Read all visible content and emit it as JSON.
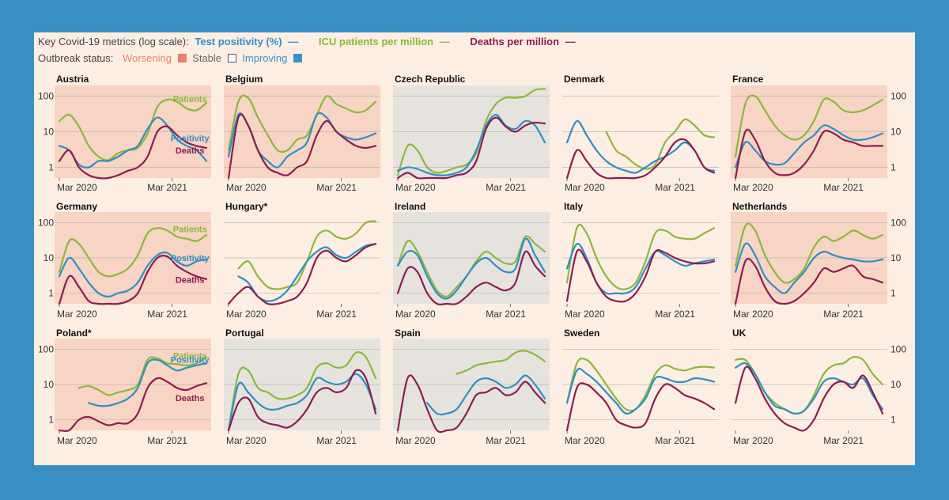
{
  "legend": {
    "metrics_prefix": "Key Covid-19 metrics (log scale):",
    "status_prefix": "Outbreak status:"
  },
  "colors": {
    "page_background": "#3a8fc2",
    "card_background": "#fdeee4",
    "positivity": "#2f8fc4",
    "patients": "#8cb83a",
    "deaths": "#8b1e50",
    "worsening_bg": "#f7d4c3",
    "stable_bg": "#e6e3df",
    "worsening_swatch": "#e9826a",
    "improving_swatch": "#3a93c8"
  },
  "chart_data": {
    "type": "line",
    "scale": "log",
    "y_ticks": [
      1,
      10,
      100
    ],
    "x_ticks": [
      "Mar 2020",
      "Mar 2021"
    ],
    "x_range": [
      "2020-03",
      "2021-04"
    ],
    "series": [
      {
        "key": "positivity",
        "name": "Test positivity (%)",
        "symbol": "—"
      },
      {
        "key": "patients",
        "name": "ICU patients per million",
        "symbol": "—"
      },
      {
        "key": "deaths",
        "name": "Deaths per million",
        "symbol": "—"
      }
    ],
    "statuses": [
      {
        "key": "worsening",
        "label": "Worsening"
      },
      {
        "key": "stable",
        "label": "Stable"
      },
      {
        "key": "improving",
        "label": "Improving"
      }
    ],
    "countries": [
      {
        "name": "Austria",
        "status": "worsening",
        "patients": [
          20,
          30,
          14,
          4,
          2,
          1.6,
          2.5,
          3,
          3.5,
          9,
          50,
          80,
          70,
          45,
          40,
          65
        ],
        "positivity": [
          4,
          3,
          1.2,
          1,
          1.5,
          1.5,
          2,
          3,
          4,
          12,
          25,
          15,
          6,
          4,
          3,
          1.5
        ],
        "deaths": [
          1.5,
          3,
          1,
          0.6,
          0.5,
          0.5,
          0.6,
          0.8,
          1,
          2,
          10,
          14,
          8,
          5,
          4,
          3.5
        ],
        "labels": [
          {
            "text": "Patients",
            "series": "patients"
          },
          {
            "text": "Deaths",
            "series": "deaths"
          },
          {
            "text": "Positivity",
            "series": "positivity"
          }
        ]
      },
      {
        "name": "Belgium",
        "status": "worsening",
        "patients": [
          3,
          70,
          90,
          25,
          8,
          3,
          3,
          6,
          8,
          30,
          100,
          60,
          45,
          35,
          40,
          70
        ],
        "positivity": [
          2,
          30,
          15,
          3,
          1.5,
          1,
          2,
          3,
          5,
          30,
          25,
          10,
          7,
          6,
          7,
          9
        ],
        "deaths": [
          0.5,
          25,
          15,
          3,
          1,
          0.7,
          0.6,
          1,
          1.5,
          8,
          20,
          10,
          6,
          4,
          3.5,
          4
        ],
        "labels": []
      },
      {
        "name": "Czech Republic",
        "status": "stable",
        "patients": [
          0.6,
          4,
          3,
          1,
          0.7,
          0.8,
          1,
          1.2,
          2.5,
          20,
          60,
          90,
          90,
          100,
          150,
          160
        ],
        "positivity": [
          0.8,
          1,
          0.9,
          0.7,
          0.6,
          0.6,
          0.7,
          1,
          3,
          15,
          30,
          15,
          12,
          20,
          15,
          5
        ],
        "deaths": [
          0.5,
          0.7,
          0.5,
          0.4,
          0.4,
          0.5,
          0.6,
          0.7,
          1.5,
          12,
          25,
          14,
          10,
          15,
          18,
          17
        ],
        "labels": []
      },
      {
        "name": "Denmark",
        "status": "improving",
        "patients": [
          null,
          null,
          null,
          null,
          10,
          3,
          2,
          1.2,
          0.9,
          1.2,
          5,
          10,
          22,
          15,
          8,
          7
        ],
        "positivity": [
          5,
          20,
          8,
          3,
          1.5,
          1,
          0.8,
          0.7,
          1,
          1.5,
          2,
          3,
          5,
          3,
          1,
          0.8
        ],
        "deaths": [
          0.5,
          3,
          1.5,
          0.7,
          0.5,
          0.4,
          0.4,
          0.5,
          0.6,
          1,
          2,
          5,
          6,
          3,
          1,
          0.7
        ],
        "labels": []
      },
      {
        "name": "France",
        "status": "worsening",
        "patients": [
          2,
          60,
          100,
          40,
          15,
          8,
          6,
          8,
          20,
          80,
          70,
          40,
          35,
          40,
          55,
          80
        ],
        "positivity": [
          1,
          5,
          3,
          1.5,
          1.2,
          1.3,
          2.5,
          5,
          8,
          15,
          12,
          8,
          6,
          6,
          7,
          9
        ],
        "deaths": [
          0.5,
          10,
          6,
          1.5,
          0.7,
          0.6,
          0.7,
          1.2,
          3,
          10,
          9,
          6,
          5,
          4,
          4,
          4
        ],
        "labels": []
      },
      {
        "name": "Germany",
        "status": "worsening",
        "patients": [
          4,
          30,
          25,
          10,
          4,
          3,
          3.5,
          5,
          12,
          50,
          70,
          60,
          40,
          35,
          30,
          45
        ],
        "positivity": [
          3,
          10,
          5,
          2,
          1,
          0.8,
          1,
          1.2,
          2,
          6,
          12,
          14,
          8,
          6,
          8,
          9
        ],
        "deaths": [
          0.5,
          3,
          1.5,
          0.6,
          0.5,
          0.5,
          0.5,
          0.6,
          1,
          4,
          10,
          11,
          6,
          4,
          3,
          2.5
        ],
        "labels": [
          {
            "text": "Patients",
            "series": "patients"
          },
          {
            "text": "Positivity",
            "series": "positivity"
          },
          {
            "text": "Deaths",
            "series": "deaths"
          }
        ]
      },
      {
        "name": "Hungary*",
        "status": "improving",
        "patients": [
          null,
          5,
          8,
          3,
          1.5,
          1.3,
          1.5,
          2,
          8,
          40,
          60,
          40,
          35,
          50,
          100,
          110
        ],
        "positivity": [
          null,
          3,
          2,
          0.8,
          0.6,
          0.7,
          1.2,
          3,
          8,
          15,
          20,
          12,
          10,
          15,
          22,
          25
        ],
        "deaths": [
          0.5,
          1,
          1.5,
          0.8,
          0.5,
          0.5,
          0.6,
          0.8,
          2,
          10,
          16,
          10,
          8,
          12,
          20,
          25
        ],
        "labels": []
      },
      {
        "name": "Ireland",
        "status": "stable",
        "patients": [
          6,
          30,
          15,
          4,
          1.2,
          0.8,
          1.5,
          3,
          8,
          15,
          10,
          7,
          8,
          40,
          25,
          15
        ],
        "positivity": [
          6,
          15,
          12,
          3,
          1,
          0.7,
          1.2,
          3,
          7,
          10,
          6,
          4,
          5,
          35,
          12,
          4
        ],
        "deaths": [
          1,
          5,
          4,
          1,
          0.5,
          0.4,
          0.5,
          0.8,
          1.5,
          2,
          1.5,
          1.2,
          2,
          15,
          6,
          3
        ],
        "labels": []
      },
      {
        "name": "Italy",
        "status": "improving",
        "patients": [
          2,
          70,
          50,
          10,
          3,
          1.5,
          1.3,
          2,
          8,
          50,
          60,
          40,
          35,
          35,
          50,
          70
        ],
        "positivity": [
          5,
          25,
          10,
          2,
          1,
          1,
          1,
          1.5,
          5,
          15,
          12,
          8,
          6,
          7,
          8,
          9
        ],
        "deaths": [
          0.6,
          15,
          8,
          2,
          0.8,
          0.6,
          0.6,
          1,
          3,
          15,
          14,
          10,
          8,
          7,
          7,
          8
        ],
        "labels": []
      },
      {
        "name": "Netherlands",
        "status": "worsening",
        "patients": [
          6,
          80,
          60,
          12,
          4,
          2,
          2.5,
          5,
          20,
          40,
          30,
          40,
          60,
          45,
          35,
          45
        ],
        "positivity": [
          4,
          25,
          12,
          3,
          1.5,
          1,
          2,
          4,
          10,
          15,
          12,
          10,
          9,
          8,
          8,
          9
        ],
        "deaths": [
          0.5,
          8,
          6,
          1.5,
          0.6,
          0.5,
          0.6,
          1,
          2,
          5,
          4,
          5,
          6,
          3,
          2.5,
          2
        ],
        "labels": []
      },
      {
        "name": "Poland*",
        "status": "worsening",
        "patients": [
          null,
          null,
          8,
          9,
          7,
          5,
          6,
          7,
          10,
          50,
          55,
          40,
          38,
          35,
          40,
          60
        ],
        "positivity": [
          null,
          null,
          null,
          3,
          2.5,
          2.5,
          3,
          4,
          8,
          40,
          50,
          35,
          25,
          30,
          35,
          40
        ],
        "deaths": [
          0.5,
          0.5,
          1,
          1.2,
          0.9,
          0.7,
          0.8,
          0.8,
          1.5,
          8,
          15,
          12,
          8,
          7,
          9,
          11
        ],
        "labels": [
          {
            "text": "Patients",
            "series": "patients"
          },
          {
            "text": "Positivity",
            "series": "positivity"
          },
          {
            "text": "Deaths",
            "series": "deaths"
          }
        ]
      },
      {
        "name": "Portugal",
        "status": "stable",
        "patients": [
          0.5,
          20,
          25,
          8,
          6,
          4,
          4,
          5,
          8,
          30,
          40,
          30,
          35,
          80,
          60,
          15
        ],
        "positivity": [
          0.5,
          10,
          6,
          3,
          2,
          2,
          2.5,
          3,
          5,
          15,
          12,
          10,
          12,
          20,
          10,
          2
        ],
        "deaths": [
          0.5,
          3,
          4,
          1.2,
          0.8,
          0.7,
          0.6,
          0.9,
          2,
          6,
          8,
          6,
          8,
          25,
          15,
          1.5
        ],
        "labels": []
      },
      {
        "name": "Spain",
        "status": "stable",
        "patients": [
          null,
          null,
          null,
          null,
          null,
          null,
          20,
          25,
          35,
          40,
          45,
          50,
          80,
          90,
          70,
          45
        ],
        "positivity": [
          null,
          null,
          null,
          3,
          1.5,
          1.5,
          2,
          5,
          12,
          15,
          12,
          8,
          10,
          18,
          10,
          4
        ],
        "deaths": [
          0.5,
          15,
          10,
          2,
          0.5,
          0.5,
          0.6,
          1.5,
          5,
          6,
          8,
          5,
          6,
          12,
          6,
          3
        ],
        "labels": []
      },
      {
        "name": "Sweden",
        "status": "improving",
        "patients": [
          3,
          40,
          50,
          25,
          10,
          4,
          2,
          2,
          5,
          20,
          35,
          28,
          25,
          30,
          32,
          30
        ],
        "positivity": [
          3,
          25,
          20,
          12,
          6,
          3,
          1.5,
          2,
          4,
          15,
          15,
          12,
          12,
          15,
          14,
          12
        ],
        "deaths": [
          0.5,
          8,
          10,
          6,
          3,
          1,
          0.7,
          0.6,
          0.8,
          4,
          10,
          8,
          5,
          4,
          3,
          2
        ],
        "labels": []
      },
      {
        "name": "UK",
        "status": "improving",
        "patients": [
          50,
          50,
          20,
          6,
          3,
          2,
          1.5,
          1.8,
          5,
          20,
          35,
          40,
          60,
          50,
          20,
          10
        ],
        "positivity": [
          30,
          40,
          20,
          6,
          2.5,
          2,
          1.5,
          1.8,
          4,
          12,
          15,
          12,
          10,
          15,
          5,
          2
        ],
        "deaths": [
          3,
          30,
          15,
          4,
          1.5,
          0.8,
          0.6,
          0.5,
          1,
          4,
          10,
          12,
          8,
          18,
          6,
          1.5
        ],
        "labels": []
      }
    ]
  }
}
